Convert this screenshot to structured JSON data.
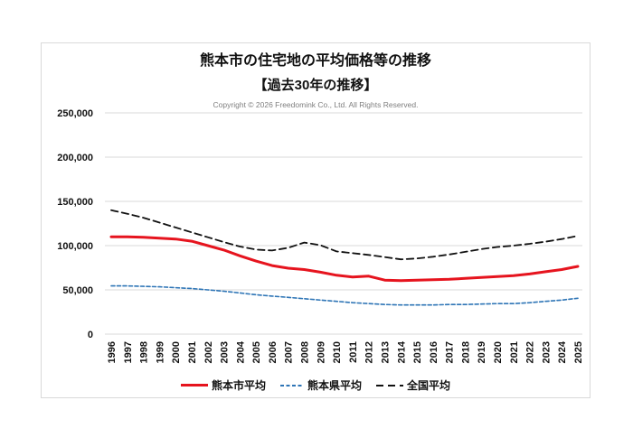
{
  "chart": {
    "title": "熊本市の住宅地の平均価格等の推移",
    "subtitle": "【過去30年の推移】",
    "copyright": "Copyright © 2026 Freedomink Co., Ltd. All Rights Reserved."
  },
  "chart_data": {
    "type": "line",
    "title": "熊本市の住宅地の平均価格等の推移",
    "subtitle": "【過去30年の推移】",
    "xlabel": "",
    "ylabel": "",
    "ylim": [
      0,
      250000
    ],
    "y_ticks": [
      0,
      50000,
      100000,
      150000,
      200000,
      250000
    ],
    "grid": true,
    "legend_position": "bottom",
    "x": [
      1996,
      1997,
      1998,
      1999,
      2000,
      2001,
      2002,
      2003,
      2004,
      2005,
      2006,
      2007,
      2008,
      2009,
      2010,
      2011,
      2012,
      2013,
      2014,
      2015,
      2016,
      2017,
      2018,
      2019,
      2020,
      2021,
      2022,
      2023,
      2024,
      2025
    ],
    "series": [
      {
        "name": "熊本市平均",
        "color": "#e6141e",
        "style": "solid",
        "stroke_width": 3,
        "values": [
          110000,
          110000,
          109500,
          108500,
          107500,
          105000,
          100000,
          95000,
          88500,
          82500,
          77500,
          74500,
          73000,
          70000,
          66500,
          64500,
          65500,
          61000,
          60500,
          61000,
          61500,
          62000,
          63000,
          64000,
          65000,
          66000,
          68000,
          70500,
          73000,
          76500
        ]
      },
      {
        "name": "熊本県平均",
        "color": "#2e75b6",
        "style": "dashed-small",
        "stroke_width": 1.6,
        "values": [
          54500,
          54500,
          54000,
          53500,
          52500,
          51500,
          50000,
          48500,
          46500,
          44500,
          43000,
          41500,
          40000,
          38500,
          37000,
          35500,
          34500,
          33500,
          33000,
          33000,
          33000,
          33500,
          33500,
          34000,
          34500,
          34500,
          35500,
          37000,
          38500,
          40500
        ]
      },
      {
        "name": "全国平均",
        "color": "#111111",
        "style": "dashed",
        "stroke_width": 1.8,
        "values": [
          140000,
          136000,
          131500,
          126000,
          120500,
          115000,
          109500,
          104000,
          99000,
          95500,
          94500,
          97500,
          103500,
          100500,
          93500,
          91500,
          89500,
          87000,
          84500,
          85500,
          87500,
          90000,
          93000,
          96000,
          98500,
          100000,
          102000,
          104500,
          107500,
          111000
        ]
      }
    ],
    "colors": {
      "gridline": "#d9d9d9",
      "axis_text": "#111111",
      "copyright_text": "#7f7f7f",
      "background": "#ffffff"
    }
  }
}
